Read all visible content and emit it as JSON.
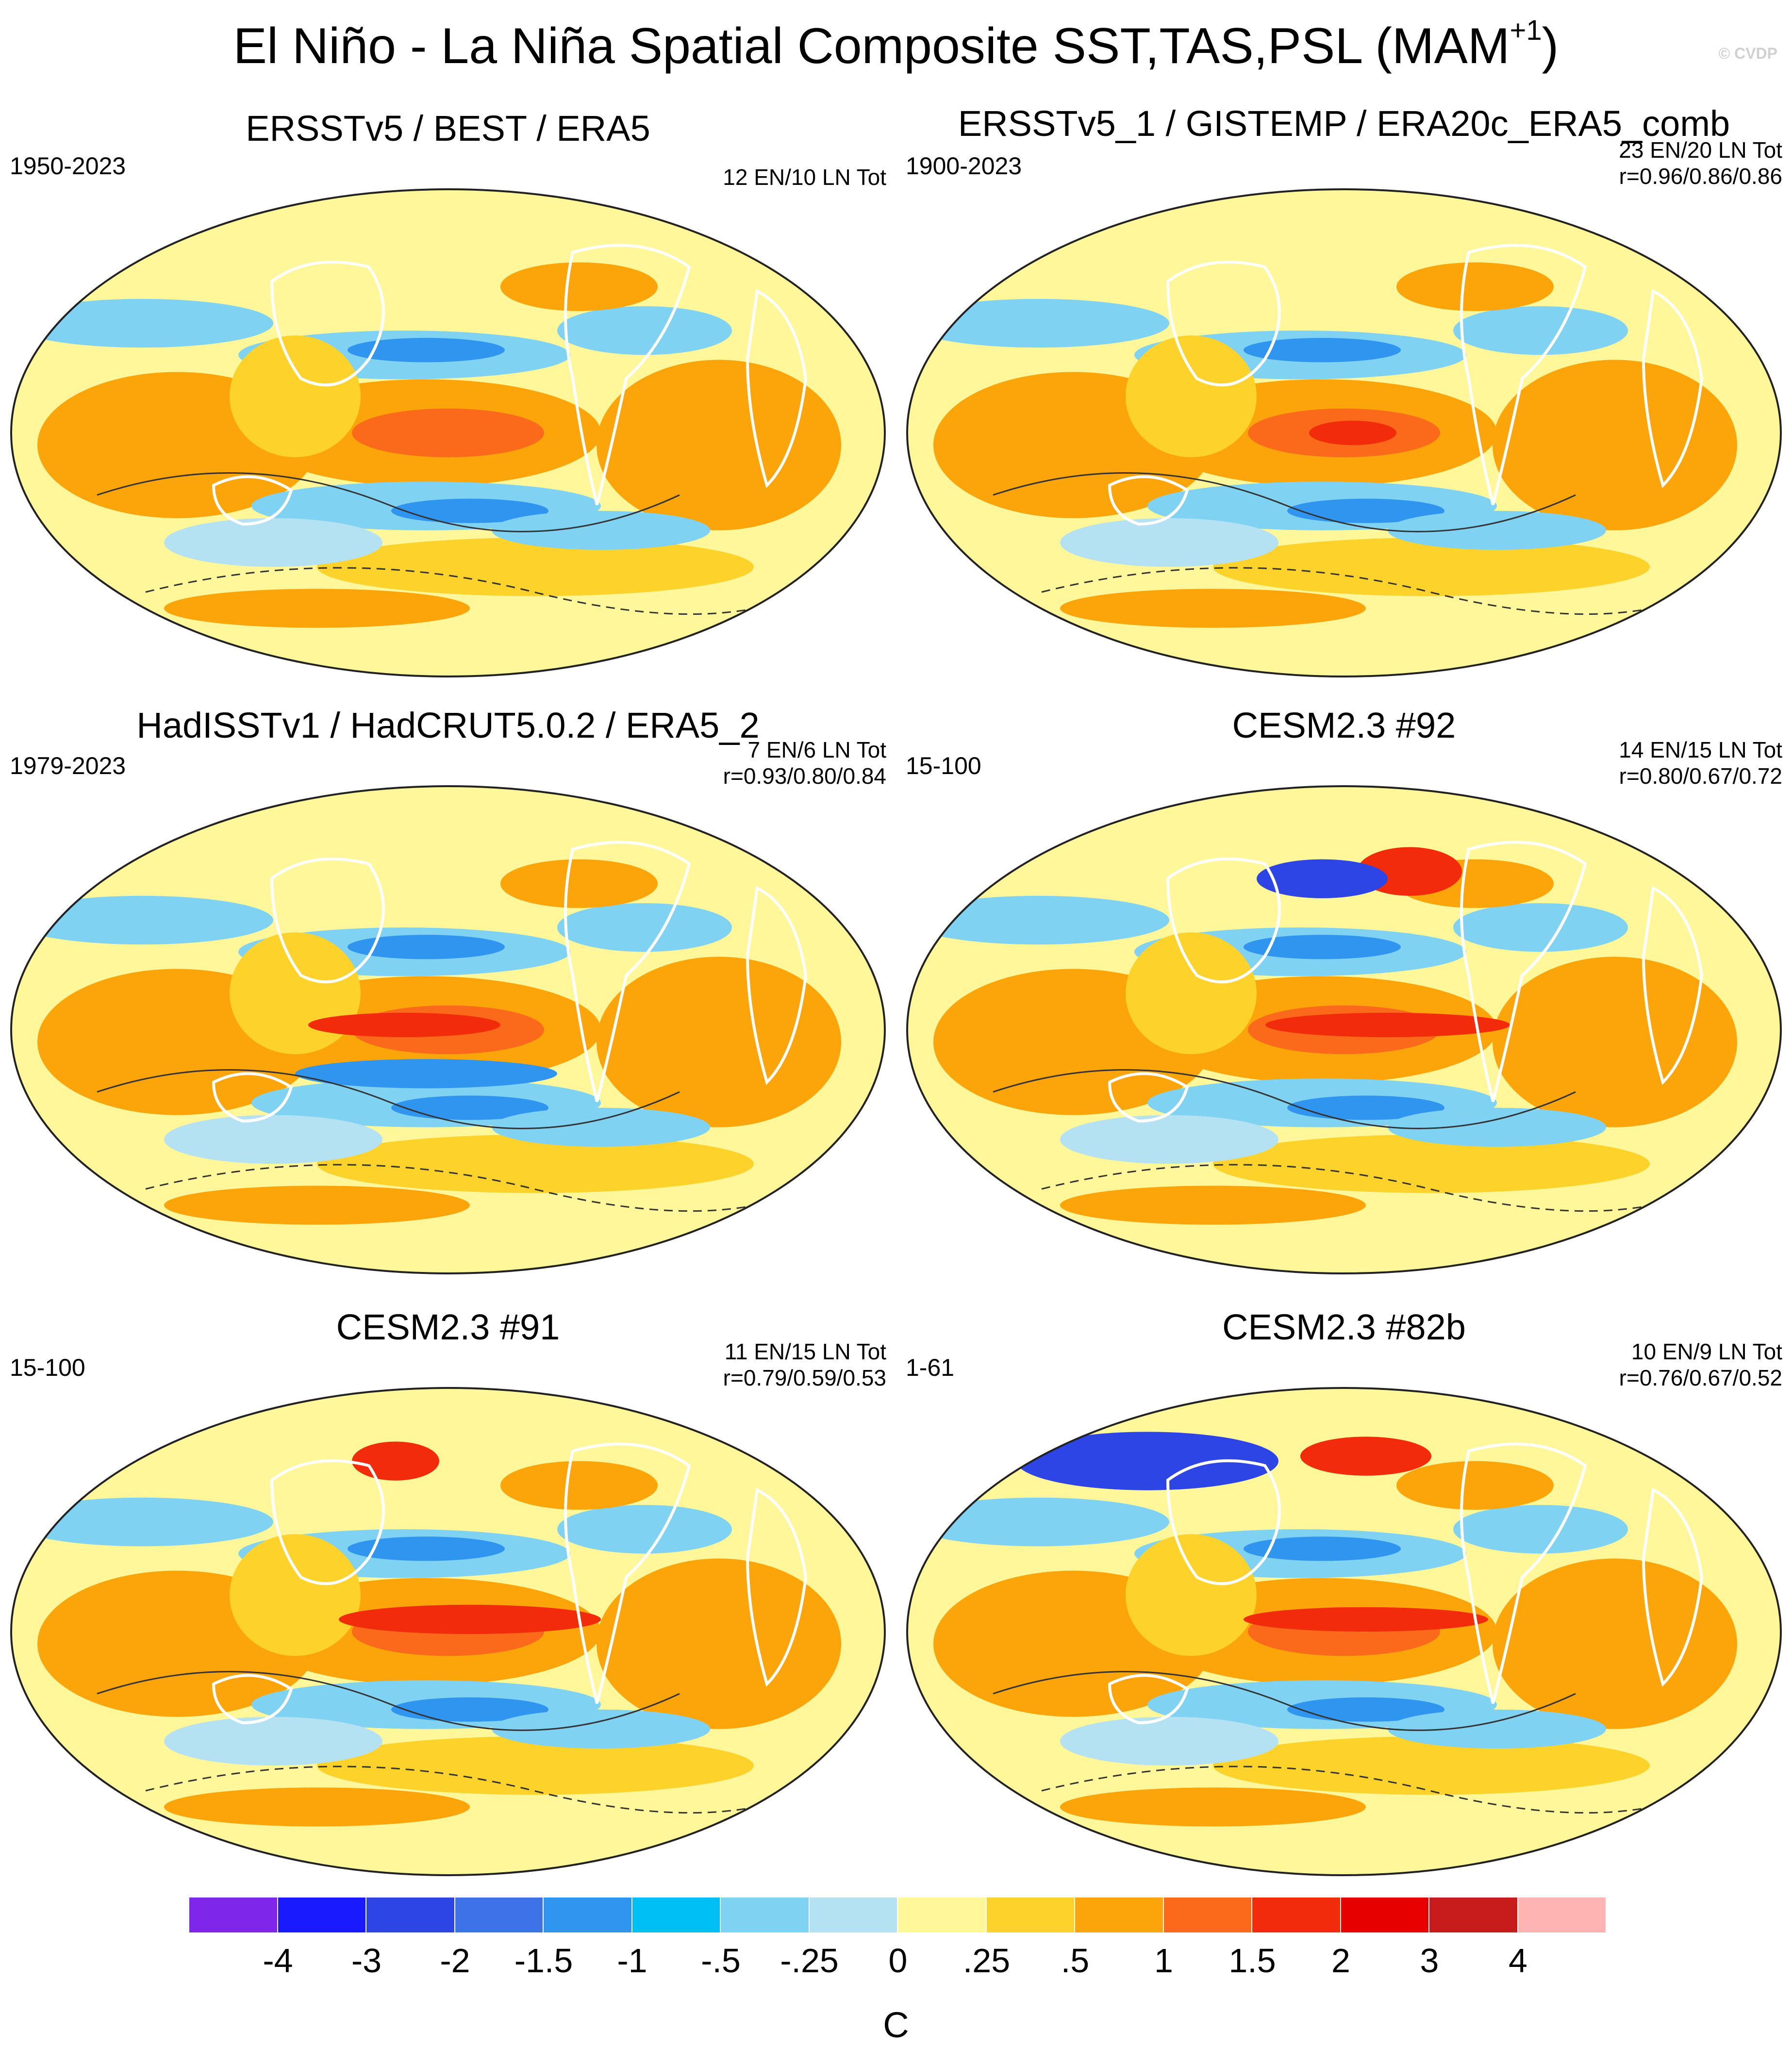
{
  "title": {
    "main": "El Niño - La Niña Spatial Composite SST,TAS,PSL (MAM",
    "sup": "+1",
    "close": ")",
    "watermark": "© CVDP"
  },
  "panels": [
    {
      "title": "ERSSTv5 / BEST / ERA5",
      "period": "1950-2023",
      "stats1": "12 EN/10 LN Tot",
      "stats2": ""
    },
    {
      "title": "ERSSTv5_1 / GISTEMP / ERA20c_ERA5_comb",
      "period": "1900-2023",
      "stats1": "23 EN/20 LN Tot",
      "stats2": "r=0.96/0.86/0.86"
    },
    {
      "title": "HadISSTv1 / HadCRUT5.0.2 / ERA5_2",
      "period": "1979-2023",
      "stats1": "7 EN/6 LN Tot",
      "stats2": "r=0.93/0.80/0.84"
    },
    {
      "title": "CESM2.3 #92",
      "period": "15-100",
      "stats1": "14 EN/15 LN Tot",
      "stats2": "r=0.80/0.67/0.72"
    },
    {
      "title": "CESM2.3 #91",
      "period": "15-100",
      "stats1": "11 EN/15 LN Tot",
      "stats2": "r=0.79/0.59/0.53"
    },
    {
      "title": "CESM2.3 #82b",
      "period": "1-61",
      "stats1": "10 EN/9 LN Tot",
      "stats2": "r=0.76/0.67/0.52"
    }
  ],
  "colorbar": {
    "colors": [
      "#7f26eb",
      "#1a1aff",
      "#2e45e6",
      "#3d73e6",
      "#2f95ee",
      "#00bff2",
      "#7fd2f2",
      "#b5e2f2",
      "#fff799",
      "#fdd22a",
      "#fca50a",
      "#fb6a1a",
      "#f22b0a",
      "#e60000",
      "#c81c1c",
      "#ffb4b4"
    ],
    "labels": [
      "-4",
      "-3",
      "-2",
      "-1.5",
      "-1",
      "-.5",
      "-.25",
      "0",
      ".25",
      ".5",
      "1",
      "1.5",
      "2",
      "3",
      "4"
    ],
    "unit": "C"
  },
  "map_colors": {
    "yellow": "#fff799",
    "gold": "#fdd22a",
    "orange": "#fca50a",
    "darkorange": "#fb6a1a",
    "red": "#f22b0a",
    "lightblue": "#b5e2f2",
    "skyblue": "#7fd2f2",
    "cyan": "#2f95ee",
    "blue": "#2e45e6"
  }
}
